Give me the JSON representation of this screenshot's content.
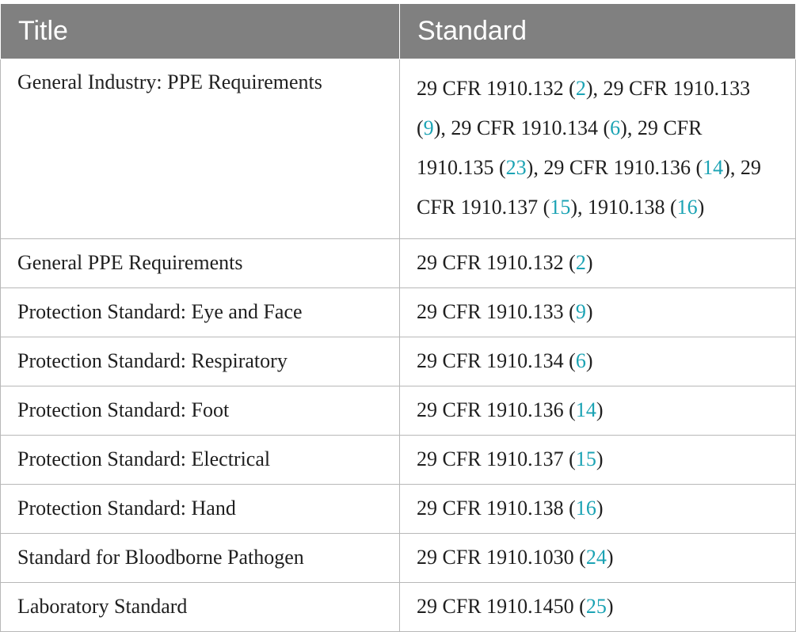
{
  "table": {
    "headers": [
      "Title",
      "Standard"
    ],
    "rows": [
      {
        "title": "General Industry: PPE Requirements",
        "citations": [
          {
            "text": "29 CFR 1910.132",
            "ref": "2"
          },
          {
            "text": "29 CFR 1910.133",
            "ref": "9"
          },
          {
            "text": "29 CFR 1910.134",
            "ref": "6"
          },
          {
            "text": "29 CFR 1910.135",
            "ref": "23"
          },
          {
            "text": "29 CFR 1910.136",
            "ref": "14"
          },
          {
            "text": "29 CFR 1910.137",
            "ref": "15"
          },
          {
            "text": "1910.138",
            "ref": "16"
          }
        ]
      },
      {
        "title": "General PPE Requirements",
        "citations": [
          {
            "text": "29 CFR 1910.132",
            "ref": "2"
          }
        ]
      },
      {
        "title": "Protection Standard: Eye and Face",
        "citations": [
          {
            "text": "29 CFR 1910.133",
            "ref": "9"
          }
        ]
      },
      {
        "title": "Protection Standard: Respiratory",
        "citations": [
          {
            "text": "29 CFR 1910.134",
            "ref": "6"
          }
        ]
      },
      {
        "title": "Protection Standard: Foot",
        "citations": [
          {
            "text": "29 CFR 1910.136",
            "ref": "14"
          }
        ]
      },
      {
        "title": "Protection Standard: Electrical",
        "citations": [
          {
            "text": "29 CFR 1910.137",
            "ref": "15"
          }
        ]
      },
      {
        "title": "Protection Standard: Hand",
        "citations": [
          {
            "text": "29 CFR 1910.138",
            "ref": "16"
          }
        ]
      },
      {
        "title": "Standard for Bloodborne Pathogen",
        "citations": [
          {
            "text": "29 CFR 1910.1030",
            "ref": "24"
          }
        ]
      },
      {
        "title": "Laboratory Standard",
        "citations": [
          {
            "text": "29 CFR 1910.1450",
            "ref": "25"
          }
        ]
      }
    ]
  },
  "colors": {
    "header_bg": "#808080",
    "header_text": "#ffffff",
    "reference_link": "#1ba3b4",
    "grid_line": "#b8b8b8"
  }
}
